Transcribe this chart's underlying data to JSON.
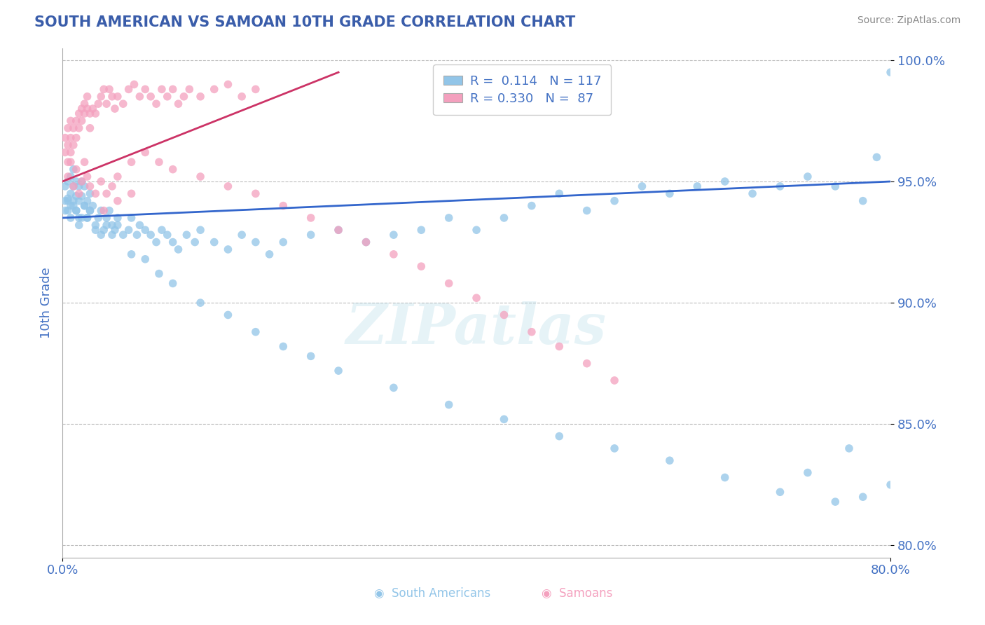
{
  "title": "SOUTH AMERICAN VS SAMOAN 10TH GRADE CORRELATION CHART",
  "source_text": "Source: ZipAtlas.com",
  "ylabel": "10th Grade",
  "xlim": [
    0.0,
    0.3
  ],
  "ylim": [
    0.795,
    1.005
  ],
  "yticks": [
    0.8,
    0.85,
    0.9,
    0.95,
    1.0
  ],
  "ytick_labels": [
    "80.0%",
    "85.0%",
    "90.0%",
    "95.0%",
    "100.0%"
  ],
  "blue_color": "#92C5E8",
  "pink_color": "#F4A0BE",
  "blue_line_color": "#3366CC",
  "pink_line_color": "#CC3366",
  "legend_R_blue": "0.114",
  "legend_N_blue": "117",
  "legend_R_pink": "0.330",
  "legend_N_pink": "87",
  "title_color": "#3A5DAA",
  "axis_color": "#4472C4",
  "grid_color": "#BBBBBB",
  "blue_points_x": [
    0.001,
    0.001,
    0.002,
    0.002,
    0.002,
    0.003,
    0.003,
    0.003,
    0.004,
    0.004,
    0.004,
    0.005,
    0.005,
    0.005,
    0.006,
    0.006,
    0.006,
    0.007,
    0.007,
    0.008,
    0.008,
    0.009,
    0.009,
    0.01,
    0.01,
    0.011,
    0.012,
    0.013,
    0.014,
    0.015,
    0.016,
    0.017,
    0.018,
    0.019,
    0.02,
    0.022,
    0.024,
    0.025,
    0.027,
    0.028,
    0.03,
    0.032,
    0.034,
    0.036,
    0.038,
    0.04,
    0.042,
    0.045,
    0.048,
    0.05,
    0.055,
    0.06,
    0.065,
    0.07,
    0.075,
    0.08,
    0.09,
    0.1,
    0.11,
    0.12,
    0.13,
    0.14,
    0.15,
    0.16,
    0.17,
    0.18,
    0.19,
    0.2,
    0.21,
    0.22,
    0.23,
    0.24,
    0.25,
    0.26,
    0.27,
    0.28,
    0.29,
    0.001,
    0.002,
    0.003,
    0.004,
    0.005,
    0.006,
    0.007,
    0.008,
    0.009,
    0.01,
    0.012,
    0.014,
    0.016,
    0.018,
    0.02,
    0.025,
    0.03,
    0.035,
    0.04,
    0.05,
    0.06,
    0.07,
    0.08,
    0.09,
    0.1,
    0.12,
    0.14,
    0.16,
    0.18,
    0.2,
    0.22,
    0.24,
    0.26,
    0.28,
    0.27,
    0.29,
    0.3,
    0.3,
    0.295,
    0.285
  ],
  "blue_points_y": [
    0.948,
    0.942,
    0.95,
    0.943,
    0.938,
    0.952,
    0.945,
    0.94,
    0.955,
    0.948,
    0.942,
    0.95,
    0.944,
    0.938,
    0.948,
    0.942,
    0.935,
    0.95,
    0.944,
    0.948,
    0.94,
    0.942,
    0.935,
    0.945,
    0.938,
    0.94,
    0.932,
    0.935,
    0.938,
    0.93,
    0.935,
    0.938,
    0.932,
    0.93,
    0.935,
    0.928,
    0.93,
    0.935,
    0.928,
    0.932,
    0.93,
    0.928,
    0.925,
    0.93,
    0.928,
    0.925,
    0.922,
    0.928,
    0.925,
    0.93,
    0.925,
    0.922,
    0.928,
    0.925,
    0.92,
    0.925,
    0.928,
    0.93,
    0.925,
    0.928,
    0.93,
    0.935,
    0.93,
    0.935,
    0.94,
    0.945,
    0.938,
    0.942,
    0.948,
    0.945,
    0.948,
    0.95,
    0.945,
    0.948,
    0.952,
    0.948,
    0.942,
    0.938,
    0.942,
    0.935,
    0.94,
    0.938,
    0.932,
    0.935,
    0.94,
    0.935,
    0.938,
    0.93,
    0.928,
    0.932,
    0.928,
    0.932,
    0.92,
    0.918,
    0.912,
    0.908,
    0.9,
    0.895,
    0.888,
    0.882,
    0.878,
    0.872,
    0.865,
    0.858,
    0.852,
    0.845,
    0.84,
    0.835,
    0.828,
    0.822,
    0.818,
    0.83,
    0.82,
    0.825,
    0.995,
    0.96,
    0.84
  ],
  "pink_points_x": [
    0.001,
    0.001,
    0.002,
    0.002,
    0.002,
    0.003,
    0.003,
    0.003,
    0.004,
    0.004,
    0.005,
    0.005,
    0.006,
    0.006,
    0.007,
    0.007,
    0.008,
    0.008,
    0.009,
    0.009,
    0.01,
    0.01,
    0.011,
    0.012,
    0.013,
    0.014,
    0.015,
    0.016,
    0.017,
    0.018,
    0.019,
    0.02,
    0.022,
    0.024,
    0.026,
    0.028,
    0.03,
    0.032,
    0.034,
    0.036,
    0.038,
    0.04,
    0.042,
    0.044,
    0.046,
    0.05,
    0.055,
    0.06,
    0.065,
    0.07,
    0.002,
    0.003,
    0.004,
    0.005,
    0.006,
    0.007,
    0.008,
    0.009,
    0.01,
    0.012,
    0.014,
    0.016,
    0.018,
    0.02,
    0.025,
    0.03,
    0.035,
    0.04,
    0.05,
    0.06,
    0.07,
    0.08,
    0.09,
    0.1,
    0.11,
    0.12,
    0.13,
    0.14,
    0.15,
    0.16,
    0.17,
    0.18,
    0.19,
    0.2,
    0.015,
    0.02,
    0.025
  ],
  "pink_points_y": [
    0.968,
    0.962,
    0.972,
    0.965,
    0.958,
    0.975,
    0.968,
    0.962,
    0.972,
    0.965,
    0.975,
    0.968,
    0.978,
    0.972,
    0.98,
    0.975,
    0.982,
    0.978,
    0.985,
    0.98,
    0.978,
    0.972,
    0.98,
    0.978,
    0.982,
    0.985,
    0.988,
    0.982,
    0.988,
    0.985,
    0.98,
    0.985,
    0.982,
    0.988,
    0.99,
    0.985,
    0.988,
    0.985,
    0.982,
    0.988,
    0.985,
    0.988,
    0.982,
    0.985,
    0.988,
    0.985,
    0.988,
    0.99,
    0.985,
    0.988,
    0.952,
    0.958,
    0.948,
    0.955,
    0.945,
    0.95,
    0.958,
    0.952,
    0.948,
    0.945,
    0.95,
    0.945,
    0.948,
    0.952,
    0.958,
    0.962,
    0.958,
    0.955,
    0.952,
    0.948,
    0.945,
    0.94,
    0.935,
    0.93,
    0.925,
    0.92,
    0.915,
    0.908,
    0.902,
    0.895,
    0.888,
    0.882,
    0.875,
    0.868,
    0.938,
    0.942,
    0.945
  ]
}
